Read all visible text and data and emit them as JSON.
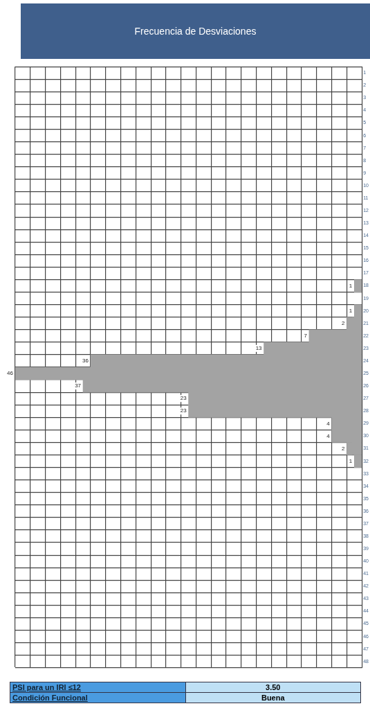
{
  "chart_data": {
    "type": "bar",
    "orientation": "horizontal",
    "title": "Frecuencia de Desviaciones",
    "categories": [
      "1",
      "2",
      "3",
      "4",
      "5",
      "6",
      "7",
      "8",
      "9",
      "10",
      "11",
      "12",
      "13",
      "14",
      "15",
      "16",
      "17",
      "18",
      "19",
      "20",
      "21",
      "22",
      "23",
      "24",
      "25",
      "26",
      "27",
      "28",
      "29",
      "30",
      "31",
      "32",
      "33",
      "34",
      "35",
      "36",
      "37",
      "38",
      "39",
      "40",
      "41",
      "42",
      "43",
      "44",
      "45",
      "46",
      "47",
      "48"
    ],
    "values": [
      null,
      null,
      null,
      null,
      null,
      null,
      null,
      null,
      null,
      null,
      null,
      null,
      null,
      null,
      null,
      null,
      null,
      1,
      null,
      1,
      2,
      7,
      13,
      36,
      46,
      37,
      23,
      23,
      4,
      4,
      2,
      1,
      null,
      null,
      null,
      null,
      null,
      null,
      null,
      null,
      null,
      null,
      null,
      null,
      null,
      null,
      null,
      null
    ],
    "color": "#a3a3a3",
    "data_labels": true,
    "grid": true,
    "tick_labels": "y",
    "legend": false,
    "xlim": [
      46,
      0
    ],
    "xticks": [
      {
        "value": 0,
        "label": null
      },
      {
        "value": 2,
        "label": null
      },
      {
        "value": 4,
        "label": null
      },
      {
        "value": 6,
        "label": null
      },
      {
        "value": 8,
        "label": null
      },
      {
        "value": 10,
        "label": null
      },
      {
        "value": 12,
        "label": null
      },
      {
        "value": 14,
        "label": null
      },
      {
        "value": 16,
        "label": null
      },
      {
        "value": 18,
        "label": null
      },
      {
        "value": 20,
        "label": null
      },
      {
        "value": 22,
        "label": null
      },
      {
        "value": 24,
        "label": null
      },
      {
        "value": 26,
        "label": null
      },
      {
        "value": 28,
        "label": null
      },
      {
        "value": 30,
        "label": null
      },
      {
        "value": 32,
        "label": null
      },
      {
        "value": 34,
        "label": null
      },
      {
        "value": 36,
        "label": null
      },
      {
        "value": 38,
        "label": null
      },
      {
        "value": 40,
        "label": null
      },
      {
        "value": 42,
        "label": null
      },
      {
        "value": 44,
        "label": null
      },
      {
        "value": 46,
        "label": null
      }
    ],
    "annotations": [
      "PSI para un IRI ≤12",
      "3.50",
      "Condición Funcional",
      "Buena"
    ]
  }
}
